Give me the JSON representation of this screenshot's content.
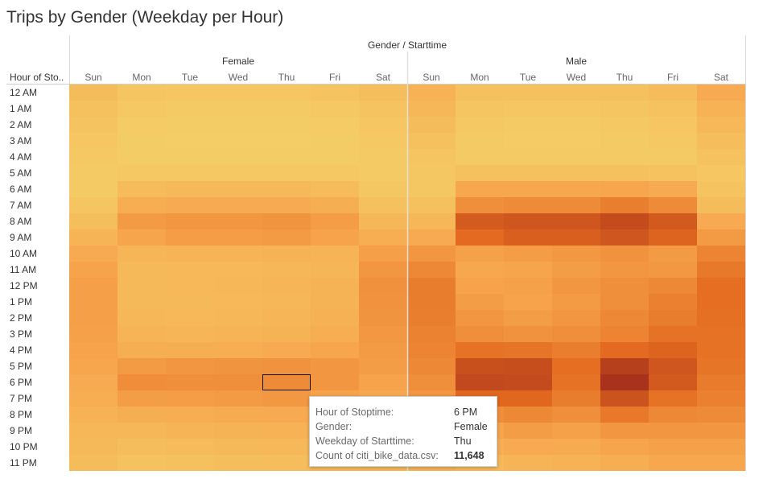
{
  "title": "Trips by Gender (Weekday per Hour)",
  "chart_data": {
    "type": "heatmap",
    "title": "Trips by Gender (Weekday per Hour)",
    "column_header": "Gender / Starttime",
    "row_header": "Hour of Sto..",
    "groups": [
      "Female",
      "Male"
    ],
    "days": [
      "Sun",
      "Mon",
      "Tue",
      "Wed",
      "Thu",
      "Fri",
      "Sat"
    ],
    "hours": [
      "12 AM",
      "1 AM",
      "2 AM",
      "3 AM",
      "4 AM",
      "5 AM",
      "6 AM",
      "7 AM",
      "8 AM",
      "9 AM",
      "10 AM",
      "11 AM",
      "12 PM",
      "1 PM",
      "2 PM",
      "3 PM",
      "4 PM",
      "5 PM",
      "6 PM",
      "7 PM",
      "8 PM",
      "9 PM",
      "10 PM",
      "11 PM"
    ],
    "female": [
      [
        0.16,
        0.09,
        0.08,
        0.08,
        0.08,
        0.1,
        0.14
      ],
      [
        0.13,
        0.06,
        0.05,
        0.05,
        0.05,
        0.06,
        0.1
      ],
      [
        0.1,
        0.04,
        0.03,
        0.03,
        0.03,
        0.04,
        0.08
      ],
      [
        0.08,
        0.03,
        0.02,
        0.02,
        0.02,
        0.03,
        0.06
      ],
      [
        0.06,
        0.03,
        0.03,
        0.03,
        0.03,
        0.03,
        0.05
      ],
      [
        0.05,
        0.06,
        0.06,
        0.06,
        0.06,
        0.06,
        0.05
      ],
      [
        0.05,
        0.17,
        0.18,
        0.18,
        0.18,
        0.17,
        0.07
      ],
      [
        0.09,
        0.28,
        0.3,
        0.3,
        0.3,
        0.27,
        0.12
      ],
      [
        0.14,
        0.4,
        0.42,
        0.42,
        0.43,
        0.39,
        0.2
      ],
      [
        0.22,
        0.34,
        0.39,
        0.39,
        0.4,
        0.35,
        0.28
      ],
      [
        0.3,
        0.21,
        0.22,
        0.22,
        0.23,
        0.22,
        0.37
      ],
      [
        0.35,
        0.18,
        0.19,
        0.19,
        0.2,
        0.21,
        0.42
      ],
      [
        0.37,
        0.18,
        0.19,
        0.2,
        0.21,
        0.23,
        0.45
      ],
      [
        0.37,
        0.18,
        0.18,
        0.19,
        0.2,
        0.23,
        0.44
      ],
      [
        0.37,
        0.2,
        0.19,
        0.2,
        0.21,
        0.25,
        0.43
      ],
      [
        0.36,
        0.22,
        0.21,
        0.22,
        0.23,
        0.28,
        0.41
      ],
      [
        0.35,
        0.27,
        0.27,
        0.28,
        0.3,
        0.33,
        0.4
      ],
      [
        0.33,
        0.4,
        0.42,
        0.43,
        0.44,
        0.42,
        0.38
      ],
      [
        0.3,
        0.47,
        0.46,
        0.46,
        0.48,
        0.42,
        0.35
      ],
      [
        0.28,
        0.38,
        0.39,
        0.4,
        0.41,
        0.35,
        0.32
      ],
      [
        0.24,
        0.27,
        0.28,
        0.29,
        0.3,
        0.29,
        0.27
      ],
      [
        0.2,
        0.2,
        0.22,
        0.23,
        0.24,
        0.25,
        0.24
      ],
      [
        0.18,
        0.15,
        0.17,
        0.18,
        0.19,
        0.21,
        0.21
      ],
      [
        0.16,
        0.11,
        0.13,
        0.14,
        0.15,
        0.18,
        0.19
      ]
    ],
    "male": [
      [
        0.24,
        0.13,
        0.12,
        0.12,
        0.13,
        0.17,
        0.3
      ],
      [
        0.2,
        0.09,
        0.08,
        0.08,
        0.09,
        0.11,
        0.24
      ],
      [
        0.16,
        0.06,
        0.05,
        0.05,
        0.06,
        0.08,
        0.19
      ],
      [
        0.12,
        0.05,
        0.04,
        0.04,
        0.05,
        0.06,
        0.15
      ],
      [
        0.09,
        0.05,
        0.05,
        0.05,
        0.05,
        0.05,
        0.11
      ],
      [
        0.07,
        0.12,
        0.12,
        0.12,
        0.12,
        0.11,
        0.08
      ],
      [
        0.07,
        0.32,
        0.32,
        0.32,
        0.33,
        0.3,
        0.1
      ],
      [
        0.13,
        0.46,
        0.48,
        0.48,
        0.55,
        0.48,
        0.16
      ],
      [
        0.2,
        0.75,
        0.78,
        0.78,
        0.85,
        0.76,
        0.3
      ],
      [
        0.3,
        0.66,
        0.73,
        0.73,
        0.78,
        0.7,
        0.4
      ],
      [
        0.42,
        0.36,
        0.39,
        0.41,
        0.44,
        0.4,
        0.52
      ],
      [
        0.5,
        0.32,
        0.34,
        0.38,
        0.42,
        0.41,
        0.58
      ],
      [
        0.56,
        0.35,
        0.36,
        0.42,
        0.46,
        0.5,
        0.64
      ],
      [
        0.56,
        0.38,
        0.35,
        0.4,
        0.46,
        0.54,
        0.64
      ],
      [
        0.55,
        0.42,
        0.38,
        0.42,
        0.5,
        0.56,
        0.63
      ],
      [
        0.53,
        0.46,
        0.44,
        0.46,
        0.52,
        0.62,
        0.62
      ],
      [
        0.52,
        0.62,
        0.6,
        0.55,
        0.66,
        0.7,
        0.62
      ],
      [
        0.5,
        0.82,
        0.83,
        0.64,
        0.92,
        0.78,
        0.6
      ],
      [
        0.46,
        0.86,
        0.85,
        0.62,
        1.0,
        0.76,
        0.57
      ],
      [
        0.42,
        0.68,
        0.68,
        0.56,
        0.8,
        0.62,
        0.54
      ],
      [
        0.36,
        0.46,
        0.5,
        0.46,
        0.58,
        0.5,
        0.48
      ],
      [
        0.3,
        0.34,
        0.38,
        0.36,
        0.42,
        0.42,
        0.42
      ],
      [
        0.26,
        0.26,
        0.3,
        0.29,
        0.34,
        0.36,
        0.36
      ],
      [
        0.22,
        0.18,
        0.22,
        0.24,
        0.27,
        0.32,
        0.32
      ]
    ],
    "value_scale": "relative 0-1",
    "color_range": [
      "#f4d068",
      "#f7a64e",
      "#e3691f",
      "#a8321b"
    ],
    "highlight": {
      "group": "Female",
      "day": "Thu",
      "hour": "6 PM"
    }
  },
  "tooltip": {
    "rows": [
      {
        "label": "Hour of Stoptime:",
        "value": "6 PM"
      },
      {
        "label": "Gender:",
        "value": "Female"
      },
      {
        "label": "Weekday of Starttime:",
        "value": "Thu"
      },
      {
        "label": "Count of citi_bike_data.csv:",
        "value": "11,648"
      }
    ]
  }
}
